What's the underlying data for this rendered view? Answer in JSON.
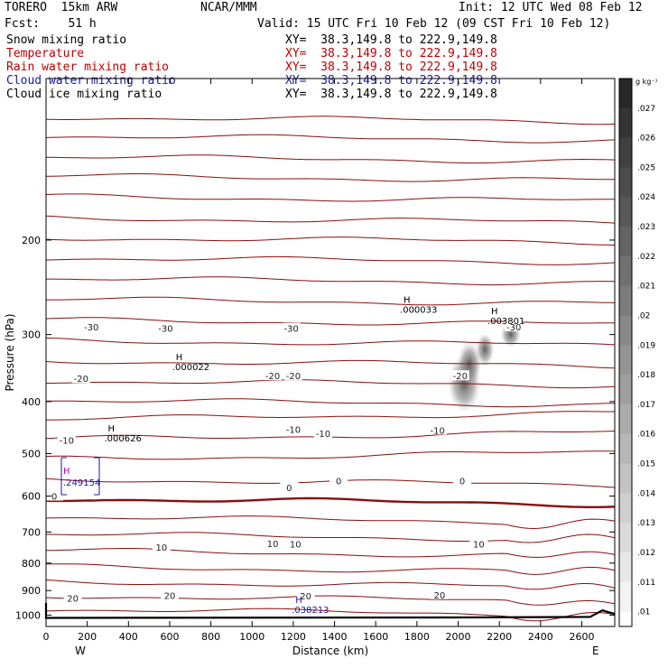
{
  "header": {
    "model": "TORERO  15km ARW",
    "org": "NCAR/MMM",
    "init": "Init: 12 UTC Wed 08 Feb 12",
    "fcst": "Fcst:    51 h",
    "valid": "Valid: 15 UTC Fri 10 Feb 12 (09 CST Fri 10 Feb 12)"
  },
  "fields": [
    {
      "name": "Snow mixing ratio",
      "xy": "XY=  38.3,149.8 to 222.9,149.8",
      "color": "#000000"
    },
    {
      "name": "Temperature",
      "xy": "XY=  38.3,149.8 to 222.9,149.8",
      "color": "#c00000"
    },
    {
      "name": "Rain water mixing ratio",
      "xy": "XY=  38.3,149.8 to 222.9,149.8",
      "color": "#c00000"
    },
    {
      "name": "Cloud water mixing ratio",
      "xy": "XY=  38.3,149.8 to 222.9,149.8",
      "color": "#1a1aa0"
    },
    {
      "name": "Cloud ice mixing ratio",
      "xy": "XY=  38.3,149.8 to 222.9,149.8",
      "color": "#000000"
    }
  ],
  "chart_data": {
    "type": "cross-section contour",
    "xlabel": "Distance (km)",
    "ylabel": "Pressure (hPa)",
    "x_ticks": [
      "0",
      "200",
      "400",
      "600",
      "800",
      "1000",
      "1200",
      "1400",
      "1600",
      "1800",
      "2000",
      "2200",
      "2400",
      "2600"
    ],
    "y_ticks": [
      "200",
      "300",
      "400",
      "500",
      "600",
      "700",
      "800",
      "900",
      "1000"
    ],
    "xlim": [
      0,
      2760
    ],
    "ylim": [
      1050,
      100
    ],
    "y_scale": "log",
    "grid": false,
    "endpoints": {
      "left": "W",
      "right": "E"
    },
    "colorbar": {
      "unit": "g kg⁻¹",
      "labels": [
        ".027",
        ".026",
        ".025",
        ".024",
        ".023",
        ".022",
        ".021",
        ".02",
        ".019",
        ".018",
        ".017",
        ".016",
        ".015",
        ".014",
        ".013",
        ".012",
        ".011",
        ".01"
      ]
    },
    "temperature_labels": [
      {
        "t": "-30",
        "x": 220,
        "p": 290
      },
      {
        "t": "-30",
        "x": 580,
        "p": 292
      },
      {
        "t": "-30",
        "x": 1190,
        "p": 292
      },
      {
        "t": "-30",
        "x": 2270,
        "p": 290
      },
      {
        "t": "-20",
        "x": 170,
        "p": 362
      },
      {
        "t": "-20",
        "x": 1100,
        "p": 358
      },
      {
        "t": "-20",
        "x": 1200,
        "p": 358
      },
      {
        "t": "-20",
        "x": 2010,
        "p": 358
      },
      {
        "t": "-10",
        "x": 100,
        "p": 472
      },
      {
        "t": "-10",
        "x": 1200,
        "p": 450
      },
      {
        "t": "-10",
        "x": 1345,
        "p": 458
      },
      {
        "t": "-10",
        "x": 1900,
        "p": 452
      },
      {
        "t": "0",
        "x": 40,
        "p": 600
      },
      {
        "t": "0",
        "x": 1180,
        "p": 578
      },
      {
        "t": "0",
        "x": 1420,
        "p": 562
      },
      {
        "t": "0",
        "x": 2020,
        "p": 562
      },
      {
        "t": "10",
        "x": 560,
        "p": 747
      },
      {
        "t": "10",
        "x": 1100,
        "p": 735
      },
      {
        "t": "10",
        "x": 1210,
        "p": 737
      },
      {
        "t": "10",
        "x": 2100,
        "p": 737
      },
      {
        "t": "20",
        "x": 130,
        "p": 930
      },
      {
        "t": "20",
        "x": 600,
        "p": 918
      },
      {
        "t": "20",
        "x": 1260,
        "p": 920
      },
      {
        "t": "20",
        "x": 1910,
        "p": 916
      }
    ],
    "maxima": [
      {
        "kind": "snow",
        "value": ".000033",
        "x": 1735,
        "p": 262,
        "color": "#000000"
      },
      {
        "kind": "snow",
        "value": ".000022",
        "x": 630,
        "p": 335,
        "color": "#000000"
      },
      {
        "kind": "snow",
        "value": ".000626",
        "x": 300,
        "p": 455,
        "color": "#000000"
      },
      {
        "kind": "ice",
        "value": ".003801",
        "x": 2160,
        "p": 275,
        "color": "#000000"
      },
      {
        "kind": "cloud",
        "value": ".038213",
        "x": 1210,
        "p": 950,
        "color": "#1a1aa0"
      }
    ],
    "box_label": ".249154",
    "snow_shade": [
      {
        "x": 2030,
        "p": 370,
        "rx": 36,
        "ry": 32
      },
      {
        "x": 2055,
        "p": 340,
        "rx": 26,
        "ry": 24
      },
      {
        "x": 2130,
        "p": 320,
        "rx": 20,
        "ry": 18
      },
      {
        "x": 2255,
        "p": 300,
        "rx": 22,
        "ry": 14
      }
    ]
  }
}
